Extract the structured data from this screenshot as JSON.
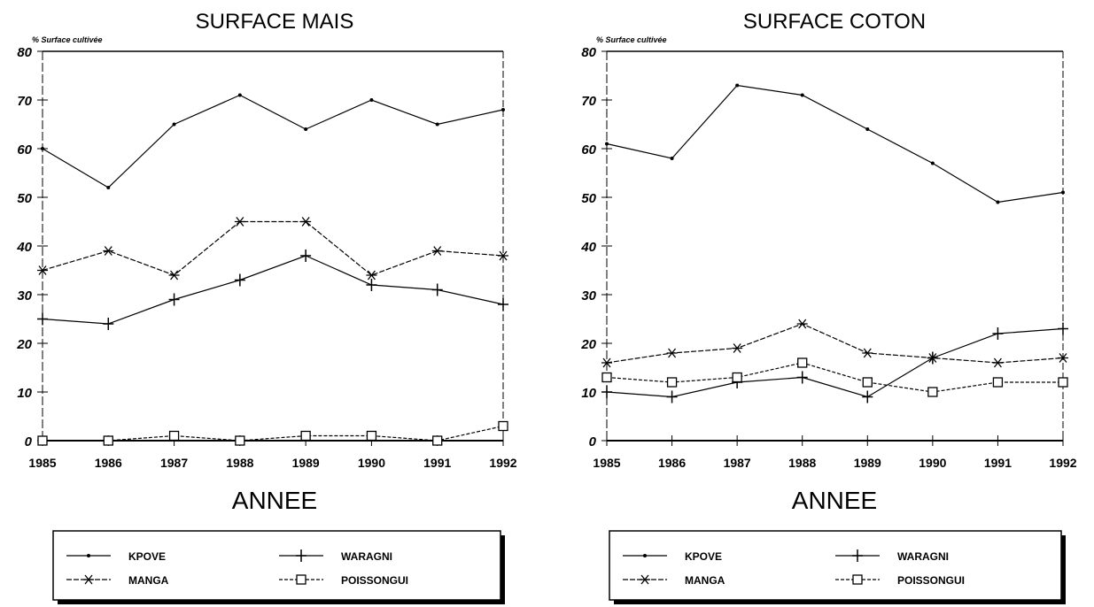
{
  "chart_data": [
    {
      "type": "line",
      "title": "SURFACE MAIS",
      "xlabel": "ANNEE",
      "ylabel": "% Surface cultivée",
      "x": [
        1985,
        1986,
        1987,
        1988,
        1989,
        1990,
        1991,
        1992
      ],
      "ylim": [
        0,
        80
      ],
      "yticks": [
        0,
        10,
        20,
        30,
        40,
        50,
        60,
        70,
        80
      ],
      "legend_placement": "bottom",
      "series": [
        {
          "name": "KPOVE",
          "marker": "dot",
          "values": [
            60,
            52,
            65,
            71,
            64,
            70,
            65,
            68
          ]
        },
        {
          "name": "MANGA",
          "marker": "asterisk",
          "values": [
            35,
            39,
            34,
            45,
            45,
            34,
            39,
            38
          ]
        },
        {
          "name": "WARAGNI",
          "marker": "plus",
          "values": [
            25,
            24,
            29,
            33,
            38,
            32,
            31,
            28
          ]
        },
        {
          "name": "POISSONGUI",
          "marker": "square",
          "values": [
            0,
            0,
            1,
            0,
            1,
            1,
            0,
            3
          ]
        }
      ]
    },
    {
      "type": "line",
      "title": "SURFACE COTON",
      "xlabel": "ANNEE",
      "ylabel": "% Surface cultivée",
      "x": [
        1985,
        1986,
        1987,
        1988,
        1989,
        1990,
        1991,
        1992
      ],
      "ylim": [
        0,
        80
      ],
      "yticks": [
        0,
        10,
        20,
        30,
        40,
        50,
        60,
        70,
        80
      ],
      "legend_placement": "bottom",
      "series": [
        {
          "name": "KPOVE",
          "marker": "dot",
          "values": [
            61,
            58,
            73,
            71,
            64,
            57,
            49,
            51
          ]
        },
        {
          "name": "MANGA",
          "marker": "asterisk",
          "values": [
            16,
            18,
            19,
            24,
            18,
            17,
            16,
            17
          ]
        },
        {
          "name": "WARAGNI",
          "marker": "plus",
          "values": [
            10,
            9,
            12,
            13,
            9,
            17,
            22,
            23
          ]
        },
        {
          "name": "POISSONGUI",
          "marker": "square",
          "values": [
            13,
            12,
            13,
            16,
            12,
            10,
            12,
            12
          ]
        }
      ]
    }
  ]
}
